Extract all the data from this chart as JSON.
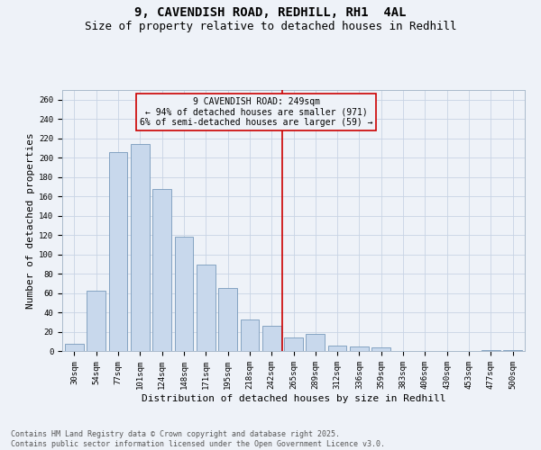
{
  "title1": "9, CAVENDISH ROAD, REDHILL, RH1  4AL",
  "title2": "Size of property relative to detached houses in Redhill",
  "xlabel": "Distribution of detached houses by size in Redhill",
  "ylabel": "Number of detached properties",
  "categories": [
    "30sqm",
    "54sqm",
    "77sqm",
    "101sqm",
    "124sqm",
    "148sqm",
    "171sqm",
    "195sqm",
    "218sqm",
    "242sqm",
    "265sqm",
    "289sqm",
    "312sqm",
    "336sqm",
    "359sqm",
    "383sqm",
    "406sqm",
    "430sqm",
    "453sqm",
    "477sqm",
    "500sqm"
  ],
  "values": [
    7,
    62,
    206,
    214,
    168,
    118,
    89,
    65,
    33,
    26,
    14,
    18,
    6,
    5,
    4,
    0,
    0,
    0,
    0,
    1,
    1
  ],
  "bar_color": "#c8d8ec",
  "bar_edge_color": "#7799bb",
  "vline_color": "#cc0000",
  "vline_x_idx": 9.5,
  "annotation_text": "9 CAVENDISH ROAD: 249sqm\n← 94% of detached houses are smaller (971)\n6% of semi-detached houses are larger (59) →",
  "ylim": [
    0,
    270
  ],
  "yticks": [
    0,
    20,
    40,
    60,
    80,
    100,
    120,
    140,
    160,
    180,
    200,
    220,
    240,
    260
  ],
  "grid_color": "#c8d4e4",
  "background_color": "#eef2f8",
  "footer": "Contains HM Land Registry data © Crown copyright and database right 2025.\nContains public sector information licensed under the Open Government Licence v3.0.",
  "title_fontsize": 10,
  "subtitle_fontsize": 9,
  "axis_label_fontsize": 8,
  "tick_fontsize": 6.5,
  "footer_fontsize": 6,
  "ann_fontsize": 7
}
